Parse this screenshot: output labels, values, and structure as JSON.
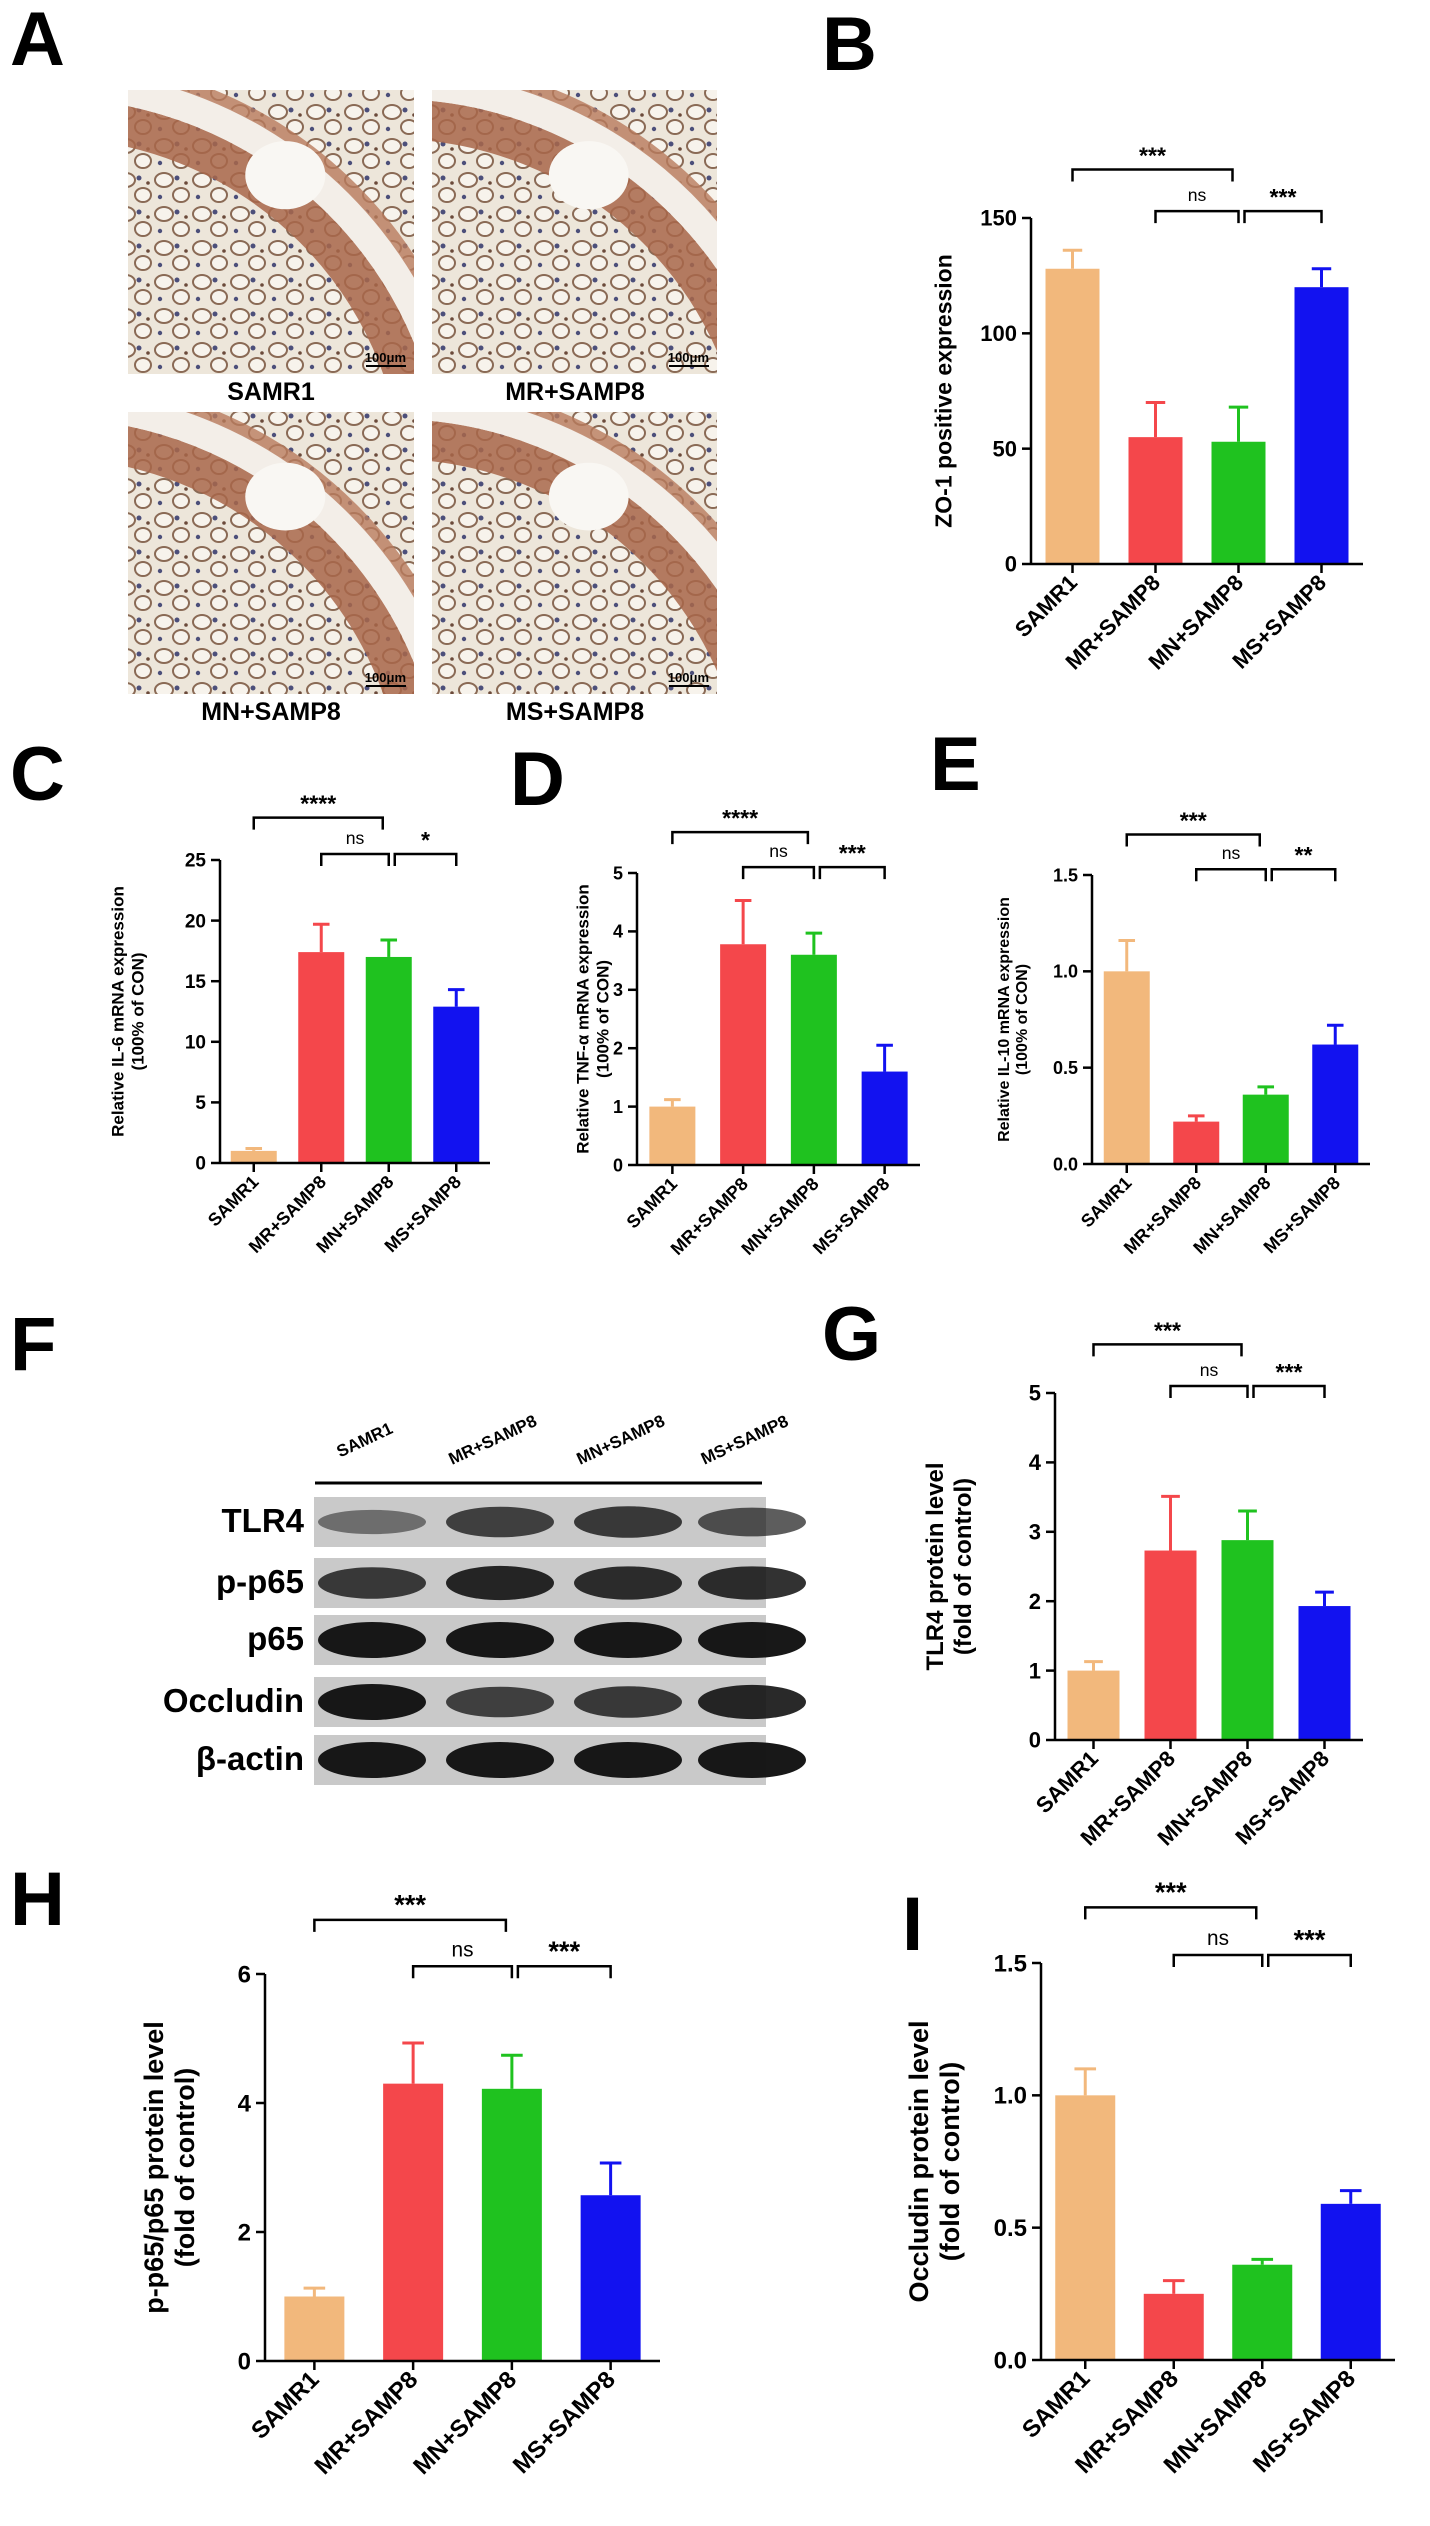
{
  "colors": {
    "SAMR1": "#f2b87c",
    "MR+SAMP8": "#f4474b",
    "MN+SAMP8": "#1fc21f",
    "MS+SAMP8": "#1212f0"
  },
  "panel_letters": [
    "A",
    "B",
    "C",
    "D",
    "E",
    "F",
    "G",
    "H",
    "I"
  ],
  "micrographs": {
    "scale_bar": "100μm",
    "images": [
      {
        "label": "SAMR1"
      },
      {
        "label": "MR+SAMP8"
      },
      {
        "label": "MN+SAMP8"
      },
      {
        "label": "MS+SAMP8"
      }
    ]
  },
  "blot": {
    "lanes": [
      "SAMR1",
      "MR+SAMP8",
      "MN+SAMP8",
      "MS+SAMP8"
    ],
    "rows": [
      {
        "label": "TLR4",
        "intensity": [
          0.35,
          0.7,
          0.75,
          0.6
        ]
      },
      {
        "label": "p-p65",
        "intensity": [
          0.75,
          0.9,
          0.85,
          0.85
        ]
      },
      {
        "label": "p65",
        "intensity": [
          1.0,
          1.0,
          1.0,
          1.0
        ]
      },
      {
        "label": "Occludin",
        "intensity": [
          1.0,
          0.7,
          0.75,
          0.9
        ]
      },
      {
        "label": "β-actin",
        "intensity": [
          1.0,
          1.0,
          1.0,
          1.0
        ]
      }
    ]
  },
  "chart_data": [
    {
      "id": "B",
      "type": "bar",
      "categories": [
        "SAMR1",
        "MR+SAMP8",
        "MN+SAMP8",
        "MS+SAMP8"
      ],
      "values": [
        128,
        55,
        53,
        120
      ],
      "errors": [
        8,
        15,
        15,
        8
      ],
      "ylabel_lines": [
        "ZO-1 positive expression"
      ],
      "ylim": [
        0,
        150
      ],
      "yticks": [
        "0",
        "50",
        "100",
        "150"
      ],
      "brackets": [
        {
          "from": 0,
          "to": 2,
          "label": "***"
        },
        {
          "from": 1,
          "to": 2,
          "label": "ns"
        },
        {
          "from": 2,
          "to": 3,
          "label": "***"
        }
      ]
    },
    {
      "id": "C",
      "type": "bar",
      "categories": [
        "SAMR1",
        "MR+SAMP8",
        "MN+SAMP8",
        "MS+SAMP8"
      ],
      "values": [
        1.0,
        17.4,
        17.0,
        12.9
      ],
      "errors": [
        0.2,
        2.3,
        1.4,
        1.4
      ],
      "ylabel_lines": [
        "Relative IL-6 mRNA expression",
        "(100% of CON)"
      ],
      "ylim": [
        0,
        25
      ],
      "yticks": [
        "0",
        "5",
        "10",
        "15",
        "20",
        "25"
      ],
      "brackets": [
        {
          "from": 0,
          "to": 2,
          "label": "****"
        },
        {
          "from": 1,
          "to": 2,
          "label": "ns"
        },
        {
          "from": 2,
          "to": 3,
          "label": "*"
        }
      ]
    },
    {
      "id": "D",
      "type": "bar",
      "categories": [
        "SAMR1",
        "MR+SAMP8",
        "MN+SAMP8",
        "MS+SAMP8"
      ],
      "values": [
        1.0,
        3.78,
        3.6,
        1.6
      ],
      "errors": [
        0.12,
        0.75,
        0.37,
        0.45
      ],
      "ylabel_lines": [
        "Relative TNF-α mRNA expression",
        "(100% of CON)"
      ],
      "ylim": [
        0,
        5
      ],
      "yticks": [
        "0",
        "1",
        "2",
        "3",
        "4",
        "5"
      ],
      "brackets": [
        {
          "from": 0,
          "to": 2,
          "label": "****"
        },
        {
          "from": 1,
          "to": 2,
          "label": "ns"
        },
        {
          "from": 2,
          "to": 3,
          "label": "***"
        }
      ]
    },
    {
      "id": "E",
      "type": "bar",
      "categories": [
        "SAMR1",
        "MR+SAMP8",
        "MN+SAMP8",
        "MS+SAMP8"
      ],
      "values": [
        1.0,
        0.22,
        0.36,
        0.62
      ],
      "errors": [
        0.16,
        0.03,
        0.04,
        0.1
      ],
      "ylabel_lines": [
        "Relative IL-10 mRNA expression",
        "(100% of CON)"
      ],
      "ylim": [
        0,
        1.5
      ],
      "yticks": [
        "0.0",
        "0.5",
        "1.0",
        "1.5"
      ],
      "brackets": [
        {
          "from": 0,
          "to": 2,
          "label": "***"
        },
        {
          "from": 1,
          "to": 2,
          "label": "ns"
        },
        {
          "from": 2,
          "to": 3,
          "label": "**"
        }
      ]
    },
    {
      "id": "G",
      "type": "bar",
      "categories": [
        "SAMR1",
        "MR+SAMP8",
        "MN+SAMP8",
        "MS+SAMP8"
      ],
      "values": [
        1.0,
        2.73,
        2.88,
        1.93
      ],
      "errors": [
        0.13,
        0.78,
        0.42,
        0.2
      ],
      "ylabel_lines": [
        "TLR4 protein level",
        "(fold of control)"
      ],
      "ylim": [
        0,
        5
      ],
      "yticks": [
        "0",
        "1",
        "2",
        "3",
        "4",
        "5"
      ],
      "brackets": [
        {
          "from": 0,
          "to": 2,
          "label": "***"
        },
        {
          "from": 1,
          "to": 2,
          "label": "ns"
        },
        {
          "from": 2,
          "to": 3,
          "label": "***"
        }
      ]
    },
    {
      "id": "H",
      "type": "bar",
      "categories": [
        "SAMR1",
        "MR+SAMP8",
        "MN+SAMP8",
        "MS+SAMP8"
      ],
      "values": [
        1.0,
        4.3,
        4.22,
        2.57
      ],
      "errors": [
        0.13,
        0.63,
        0.52,
        0.5
      ],
      "ylabel_lines": [
        "p-p65/p65 protein level",
        "(fold of control)"
      ],
      "ylim": [
        0,
        6
      ],
      "yticks": [
        "0",
        "2",
        "4",
        "6"
      ],
      "brackets": [
        {
          "from": 0,
          "to": 2,
          "label": "***"
        },
        {
          "from": 1,
          "to": 2,
          "label": "ns"
        },
        {
          "from": 2,
          "to": 3,
          "label": "***"
        }
      ]
    },
    {
      "id": "I",
      "type": "bar",
      "categories": [
        "SAMR1",
        "MR+SAMP8",
        "MN+SAMP8",
        "MS+SAMP8"
      ],
      "values": [
        1.0,
        0.25,
        0.36,
        0.59
      ],
      "errors": [
        0.1,
        0.05,
        0.02,
        0.05
      ],
      "ylabel_lines": [
        "Occludin protein level",
        "(fold of control)"
      ],
      "ylim": [
        0,
        1.5
      ],
      "yticks": [
        "0.0",
        "0.5",
        "1.0",
        "1.5"
      ],
      "brackets": [
        {
          "from": 0,
          "to": 2,
          "label": "***"
        },
        {
          "from": 1,
          "to": 2,
          "label": "ns"
        },
        {
          "from": 2,
          "to": 3,
          "label": "***"
        }
      ]
    }
  ]
}
